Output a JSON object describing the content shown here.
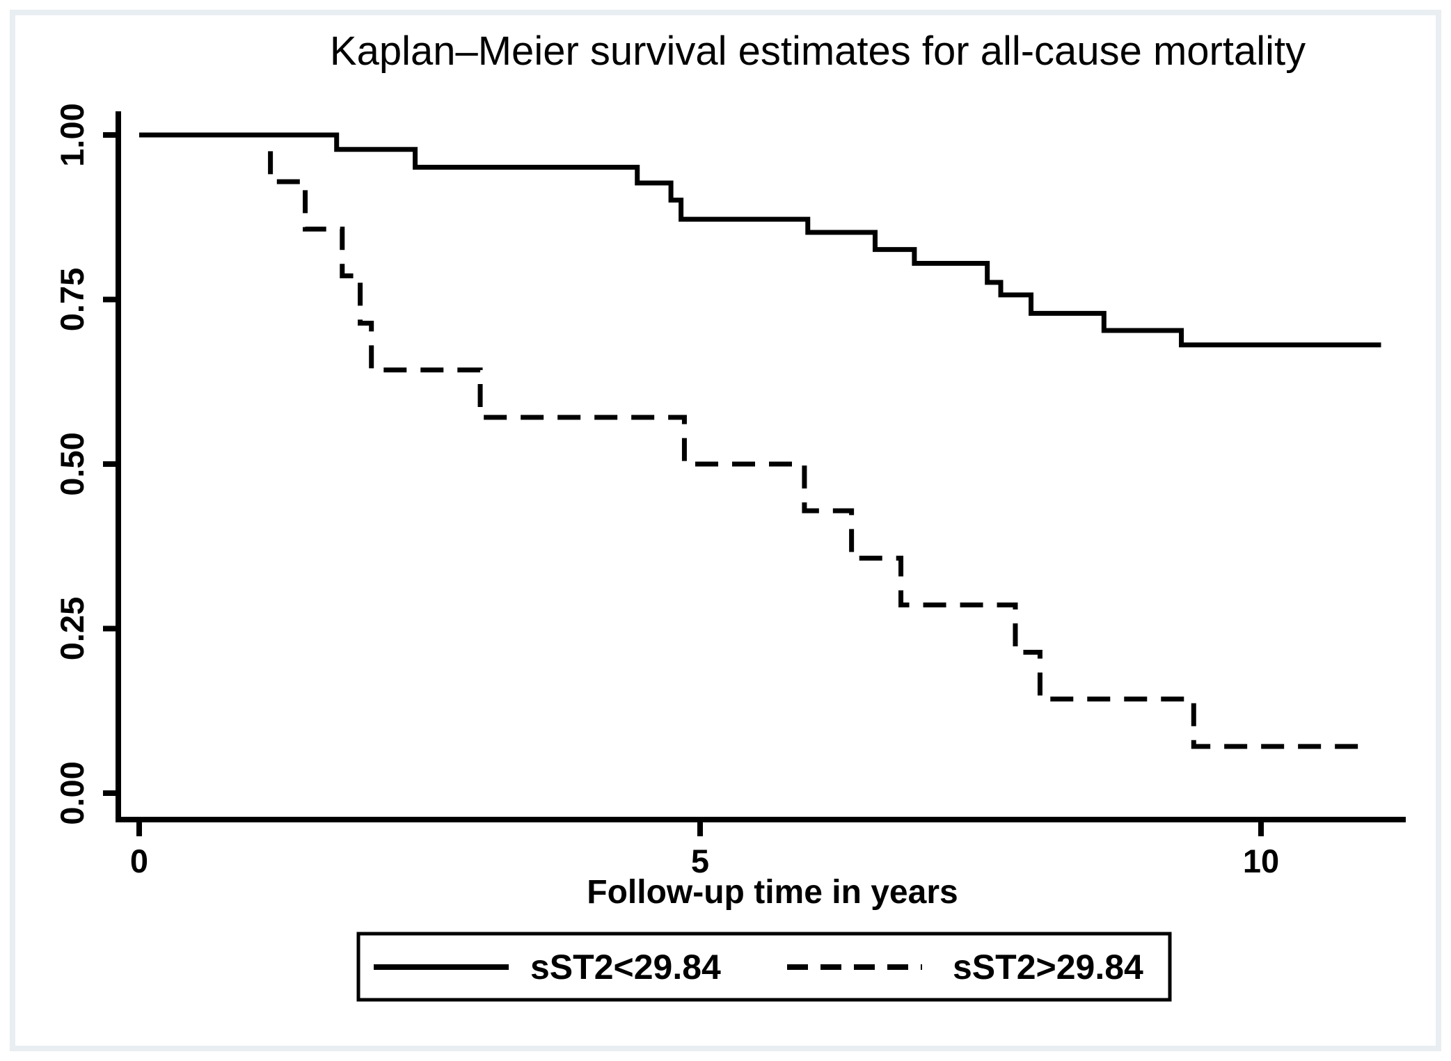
{
  "figure": {
    "frame_color": "#e8eef1",
    "background_color": "#ffffff",
    "line_color": "#000000"
  },
  "chart_data": {
    "type": "line",
    "subtype": "kaplan-meier-step",
    "title": "Kaplan–Meier survival estimates for all-cause mortality",
    "xlabel": "Follow-up time in years",
    "ylabel": "",
    "xlim": [
      0,
      11.4
    ],
    "ylim": [
      0,
      1
    ],
    "xticks": [
      0,
      5,
      10
    ],
    "xtick_labels": [
      "0",
      "5",
      "10"
    ],
    "yticks": [
      0,
      0.25,
      0.5,
      0.75,
      1
    ],
    "ytick_labels": [
      "0.00",
      "0.25",
      "0.50",
      "0.75",
      "1.00"
    ],
    "grid": false,
    "legend_position": "bottom-center",
    "series": [
      {
        "name": "sST2<29.84",
        "line_style": "solid",
        "color": "#000000",
        "steps": [
          [
            0,
            1.0
          ],
          [
            1.76,
            0.978
          ],
          [
            2.46,
            0.951
          ],
          [
            4.44,
            0.927
          ],
          [
            4.74,
            0.901
          ],
          [
            4.83,
            0.872
          ],
          [
            5.96,
            0.852
          ],
          [
            6.56,
            0.826
          ],
          [
            6.91,
            0.805
          ],
          [
            7.56,
            0.776
          ],
          [
            7.68,
            0.757
          ],
          [
            7.95,
            0.729
          ],
          [
            8.6,
            0.703
          ],
          [
            9.29,
            0.681
          ]
        ],
        "end_time": 11.07
      },
      {
        "name": "sST2>29.84",
        "line_style": "dashed",
        "color": "#000000",
        "steps": [
          [
            0,
            1.0
          ],
          [
            1.17,
            0.929
          ],
          [
            1.48,
            0.857
          ],
          [
            1.81,
            0.786
          ],
          [
            1.97,
            0.714
          ],
          [
            2.07,
            0.643
          ],
          [
            3.04,
            0.571
          ],
          [
            4.86,
            0.5
          ],
          [
            5.93,
            0.429
          ],
          [
            6.35,
            0.357
          ],
          [
            6.79,
            0.286
          ],
          [
            7.81,
            0.214
          ],
          [
            8.03,
            0.143
          ],
          [
            9.4,
            0.071
          ]
        ],
        "end_time": 10.97
      }
    ]
  }
}
